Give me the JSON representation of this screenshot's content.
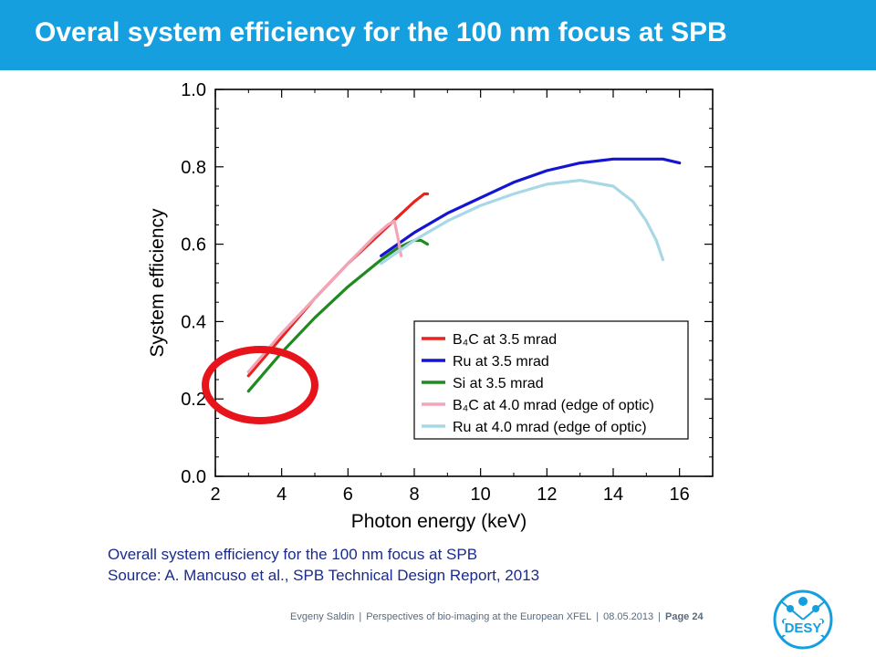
{
  "slide": {
    "title": "Overal system efficiency for  the 100 nm focus at SPB",
    "caption_line1": "Overall system efficiency for the 100 nm focus at SPB",
    "caption_line2": "Source: A. Mancuso et al., SPB Technical Design Report, 2013",
    "footer_author": "Evgeny Saldin",
    "footer_talk": "Perspectives of bio-imaging at the European XFEL",
    "footer_date": "08.05.2013",
    "footer_page": "Page 24",
    "logo_text": "DESY",
    "colors": {
      "title_bar": "#159fdf",
      "caption": "#1a2b8c",
      "highlight_circle": "#e8141c"
    }
  },
  "chart_data": {
    "type": "line",
    "xlabel": "Photon energy (keV)",
    "ylabel": "System efficiency",
    "xlim": [
      2,
      17
    ],
    "ylim": [
      0,
      1
    ],
    "xticks": [
      "2",
      "4",
      "6",
      "8",
      "10",
      "12",
      "14",
      "16"
    ],
    "yticks": [
      "0.0",
      "0.2",
      "0.4",
      "0.6",
      "0.8",
      "1.0"
    ],
    "legend_position": "lower-right",
    "series": [
      {
        "name": "B₄C at 3.5 mrad",
        "color": "#e8231c",
        "x": [
          3.0,
          4.0,
          5.0,
          6.0,
          7.0,
          7.5,
          8.0,
          8.3,
          8.4
        ],
        "y": [
          0.26,
          0.36,
          0.46,
          0.55,
          0.63,
          0.67,
          0.71,
          0.73,
          0.73
        ]
      },
      {
        "name": "Ru at 3.5 mrad",
        "color": "#1414d2",
        "x": [
          7.0,
          8.0,
          9.0,
          10.0,
          11.0,
          12.0,
          13.0,
          14.0,
          14.8,
          15.5,
          16.0
        ],
        "y": [
          0.57,
          0.63,
          0.68,
          0.72,
          0.76,
          0.79,
          0.81,
          0.82,
          0.82,
          0.82,
          0.81
        ]
      },
      {
        "name": "Si at 3.5 mrad",
        "color": "#1f8a1f",
        "x": [
          3.0,
          4.0,
          5.0,
          6.0,
          7.0,
          7.5,
          8.0,
          8.2,
          8.4
        ],
        "y": [
          0.22,
          0.32,
          0.41,
          0.49,
          0.56,
          0.59,
          0.61,
          0.61,
          0.6
        ]
      },
      {
        "name": "B₄C at 4.0 mrad (edge of optic)",
        "color": "#f2a5b8",
        "x": [
          3.0,
          4.0,
          5.0,
          6.0,
          6.8,
          7.2,
          7.4,
          7.5,
          7.6
        ],
        "y": [
          0.27,
          0.37,
          0.46,
          0.55,
          0.62,
          0.65,
          0.66,
          0.62,
          0.57
        ]
      },
      {
        "name": "Ru at 4.0 mrad (edge of optic)",
        "color": "#a8d8e6",
        "x": [
          7.0,
          8.0,
          9.0,
          10.0,
          11.0,
          12.0,
          13.0,
          14.0,
          14.6,
          15.0,
          15.3,
          15.5
        ],
        "y": [
          0.55,
          0.61,
          0.66,
          0.7,
          0.73,
          0.755,
          0.765,
          0.75,
          0.71,
          0.66,
          0.61,
          0.56
        ]
      }
    ],
    "annotation": "red circle highlighting low-energy region (≈3 keV, efficiency ≈0.25)"
  }
}
